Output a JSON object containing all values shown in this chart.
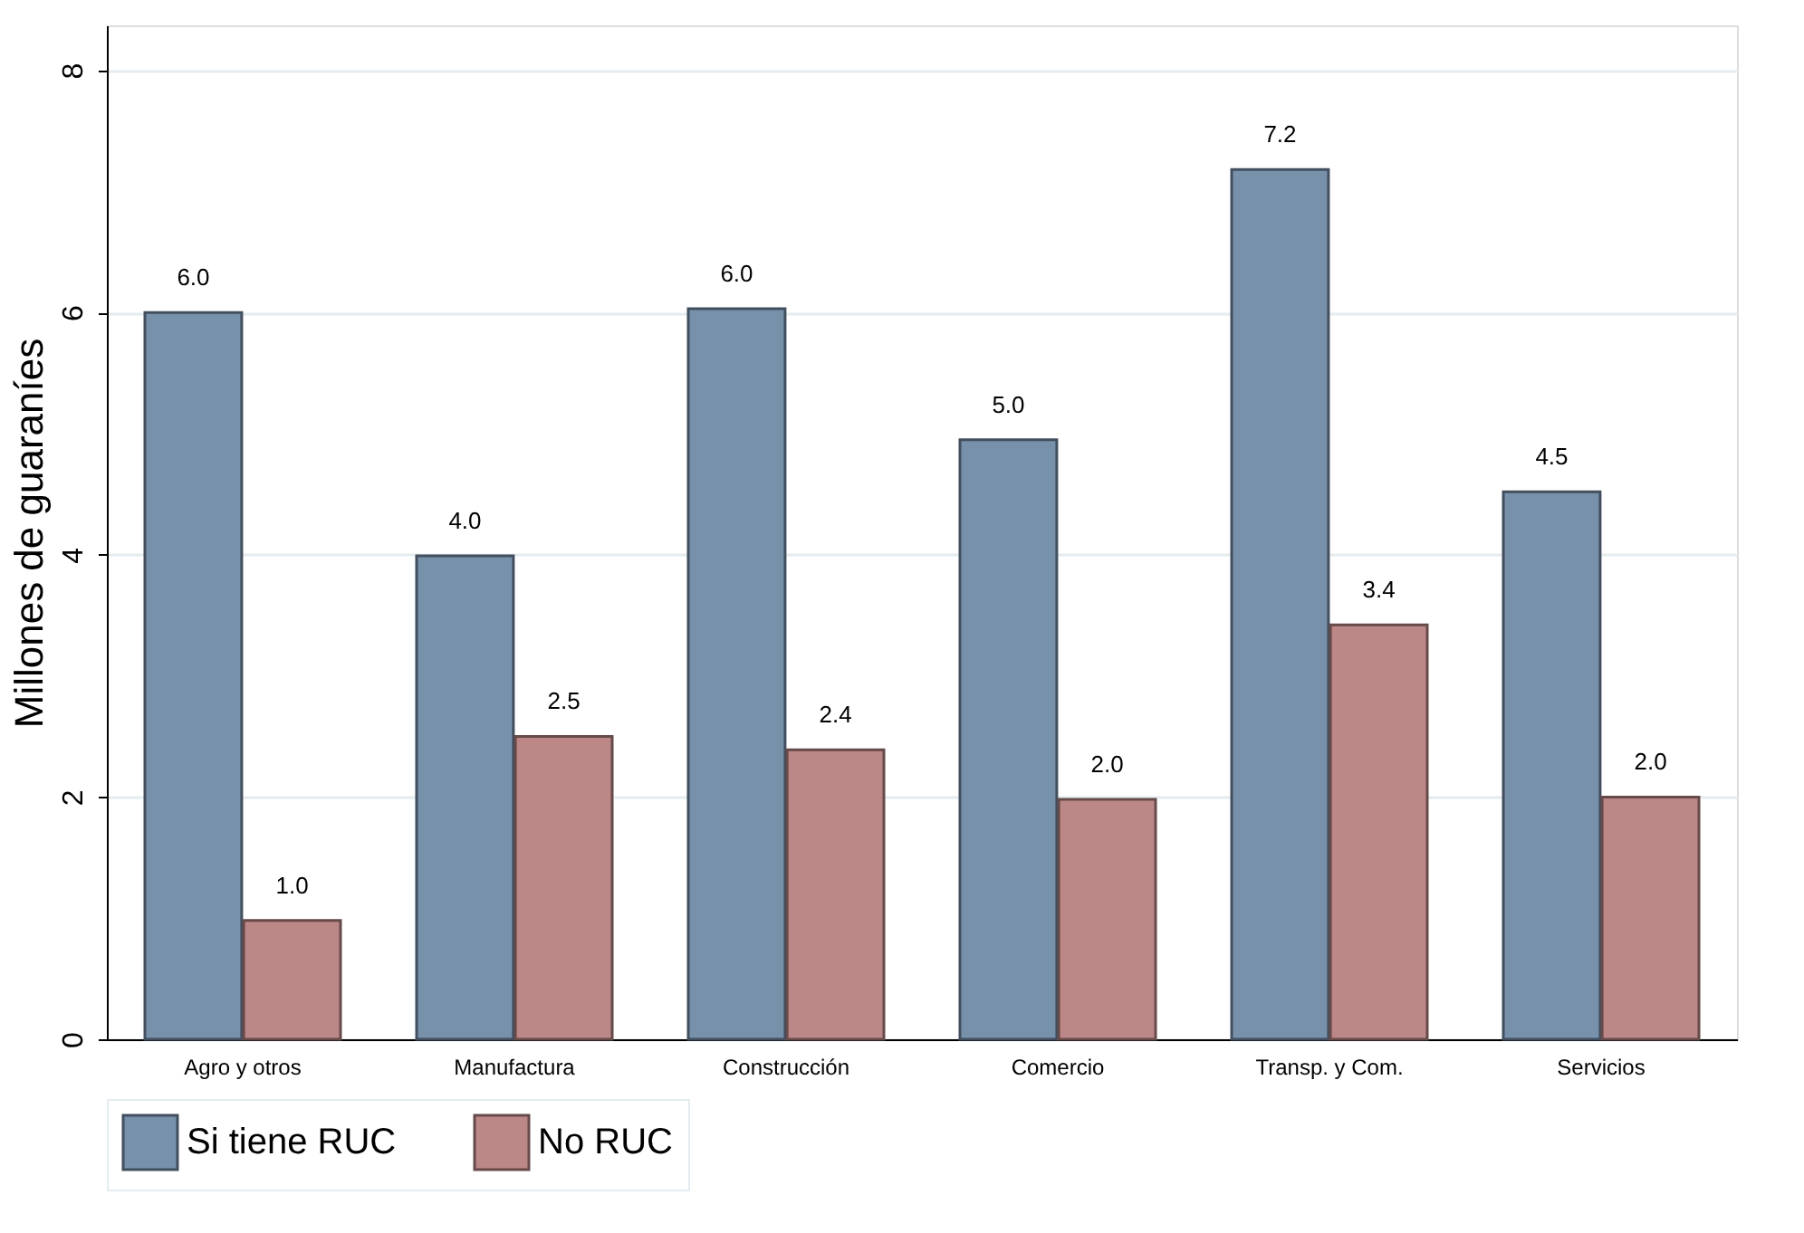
{
  "chart_data": {
    "type": "bar",
    "ylabel": "Millones de guaraníes",
    "categories": [
      "Agro y otros",
      "Manufactura",
      "Construcción",
      "Comercio",
      "Transp. y Com.",
      "Servicios"
    ],
    "series": [
      {
        "name": "Si tiene RUC",
        "color": "#7891ab",
        "values": [
          6.0,
          3.99,
          6.03,
          4.95,
          7.18,
          4.52
        ],
        "value_labels": [
          "6.0",
          "4.0",
          "6.0",
          "5.0",
          "7.2",
          "4.5"
        ]
      },
      {
        "name": "No RUC",
        "color": "#bc8787",
        "values": [
          0.98,
          2.5,
          2.39,
          1.98,
          3.42,
          2.0
        ],
        "value_labels": [
          "1.0",
          "2.5",
          "2.4",
          "2.0",
          "3.4",
          "2.0"
        ]
      }
    ],
    "ylim": [
      0,
      8.37
    ],
    "yticks": [
      0,
      2,
      4,
      6,
      8
    ],
    "grid": "y",
    "legend": "bottom"
  }
}
